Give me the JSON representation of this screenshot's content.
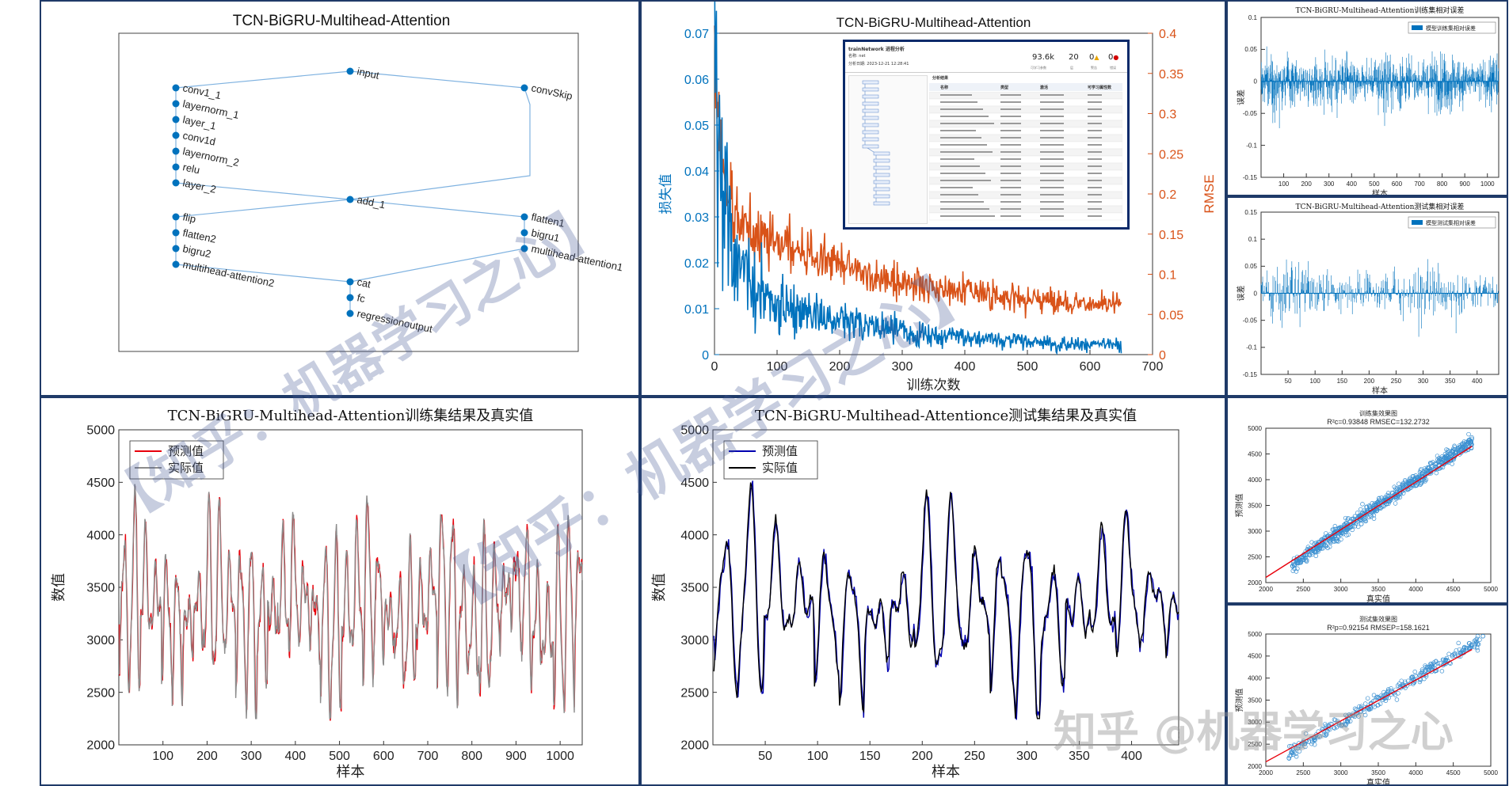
{
  "watermarks": [
    "【知乎：机器学习之心】",
    "【知乎：机器学习之心】",
    "知乎 @机器学习之心"
  ],
  "colors": {
    "panel_border": "#1f3a68",
    "blue": "#0072bd",
    "orange": "#d95319",
    "red": "#e8000b",
    "gray": "#8c8c8c",
    "navy": "#0000b0",
    "black": "#000000"
  },
  "network": {
    "title": "TCN-BiGRU-Multihead-Attention",
    "nodes": [
      "input",
      "conv1_1",
      "layernorm_1",
      "layer_1",
      "conv1d",
      "layernorm_2",
      "relu",
      "layer_2",
      "convSkip",
      "add_1",
      "flip",
      "flatten2",
      "bigru2",
      "multihead-attention2",
      "flatten1",
      "bigru1",
      "multihead-attention1",
      "cat",
      "fc",
      "regressionoutput"
    ]
  },
  "inset": {
    "title": "trainNetwork 进程分析",
    "name_label": "名称: net",
    "time_label": "分析日期: 2023-12-21 12:28:41",
    "stats": [
      "93.6k",
      "20",
      "0",
      "0"
    ],
    "stats_labels": [
      "可学习参数",
      "层",
      "警告",
      "错误"
    ],
    "table_title": "分析结果",
    "cols": [
      "名称",
      "类型",
      "激活",
      "可学习属性数"
    ]
  },
  "chart_data": [
    {
      "type": "line",
      "title": "TCN-BiGRU-Multihead-Attention",
      "xlabel": "训练次数",
      "ylabel": "损失值",
      "y2label": "RMSE",
      "xlim": [
        0,
        700
      ],
      "ylim": [
        0,
        0.07
      ],
      "y2lim": [
        0,
        0.4
      ],
      "xticks": [
        0,
        100,
        200,
        300,
        400,
        500,
        600,
        700
      ],
      "yticks": [
        0,
        0.01,
        0.02,
        0.03,
        0.04,
        0.05,
        0.06,
        0.07
      ],
      "y2ticks": [
        0,
        0.05,
        0.1,
        0.15,
        0.2,
        0.25,
        0.3,
        0.35,
        0.4
      ],
      "series": [
        {
          "name": "损失值",
          "x": [
            0,
            5,
            10,
            20,
            30,
            50,
            75,
            100,
            150,
            200,
            250,
            300,
            350,
            400,
            450,
            500,
            550,
            600,
            650
          ],
          "y": [
            0.066,
            0.05,
            0.042,
            0.03,
            0.022,
            0.016,
            0.013,
            0.011,
            0.009,
            0.007,
            0.006,
            0.005,
            0.004,
            0.0038,
            0.0033,
            0.0028,
            0.0025,
            0.0023,
            0.0022
          ]
        },
        {
          "name": "RMSE",
          "x": [
            0,
            5,
            10,
            20,
            30,
            50,
            75,
            100,
            150,
            200,
            250,
            300,
            350,
            400,
            450,
            500,
            550,
            600,
            650
          ],
          "y": [
            0.37,
            0.3,
            0.25,
            0.2,
            0.18,
            0.16,
            0.15,
            0.14,
            0.125,
            0.11,
            0.1,
            0.09,
            0.085,
            0.08,
            0.074,
            0.07,
            0.066,
            0.062,
            0.06
          ]
        }
      ]
    },
    {
      "type": "bar",
      "title": "TCN-BiGRU-Multihead-Attention训练集相对误差",
      "xlabel": "样本",
      "ylabel": "误差",
      "legend": "模型训练集相对误差",
      "xlim": [
        0,
        1050
      ],
      "ylim": [
        -0.15,
        0.1
      ],
      "xticks": [
        100,
        200,
        300,
        400,
        500,
        600,
        700,
        800,
        900,
        1000
      ],
      "yticks": [
        -0.15,
        -0.1,
        -0.05,
        0,
        0.05,
        0.1
      ],
      "n": 1050,
      "amplitude": 0.05
    },
    {
      "type": "bar",
      "title": "TCN-BiGRU-Multihead-Attention测试集相对误差",
      "xlabel": "样本",
      "ylabel": "误差",
      "legend": "模型测试集相对误差",
      "xlim": [
        0,
        440
      ],
      "ylim": [
        -0.15,
        0.15
      ],
      "xticks": [
        50,
        100,
        150,
        200,
        250,
        300,
        350,
        400
      ],
      "yticks": [
        -0.15,
        -0.1,
        -0.05,
        0,
        0.05,
        0.1,
        0.15
      ],
      "n": 440,
      "amplitude": 0.06
    },
    {
      "type": "line",
      "title": "TCN-BiGRU-Multihead-Attention训练集结果及真实值",
      "xlabel": "样本",
      "ylabel": "数值",
      "xlim": [
        0,
        1050
      ],
      "ylim": [
        2000,
        5000
      ],
      "xticks": [
        100,
        200,
        300,
        400,
        500,
        600,
        700,
        800,
        900,
        1000
      ],
      "yticks": [
        2000,
        2500,
        3000,
        3500,
        4000,
        4500,
        5000
      ],
      "series": [
        {
          "name": "预测值"
        },
        {
          "name": "实际值"
        }
      ],
      "n": 1050,
      "period": 24
    },
    {
      "type": "line",
      "title": "TCN-BiGRU-Multihead-Attentionce测试集结果及真实值",
      "xlabel": "样本",
      "ylabel": "数值",
      "xlim": [
        0,
        445
      ],
      "ylim": [
        2000,
        5000
      ],
      "xticks": [
        50,
        100,
        150,
        200,
        250,
        300,
        350,
        400
      ],
      "yticks": [
        2000,
        2500,
        3000,
        3500,
        4000,
        4500,
        5000
      ],
      "series": [
        {
          "name": "预测值"
        },
        {
          "name": "实际值"
        }
      ],
      "n": 445,
      "period": 24
    },
    {
      "type": "scatter",
      "title": "训练集效果图",
      "subtitle": "R²c=0.93848   RMSEC=132.2732",
      "xlabel": "真实值",
      "ylabel": "预测值",
      "xlim": [
        2000,
        5000
      ],
      "ylim": [
        2000,
        5000
      ],
      "ticks": [
        2000,
        2500,
        3000,
        3500,
        4000,
        4500,
        5000
      ],
      "xrange": [
        2350,
        4750
      ],
      "n": 700,
      "spread": 180
    },
    {
      "type": "scatter",
      "title": "测试集效果图",
      "subtitle": "R²p=0.92154   RMSEP=158.1621",
      "xlabel": "真实值",
      "ylabel": "预测值",
      "xlim": [
        2000,
        5000
      ],
      "ylim": [
        2000,
        5000
      ],
      "ticks": [
        2000,
        2500,
        3000,
        3500,
        4000,
        4500,
        5000
      ],
      "xrange": [
        2300,
        4900
      ],
      "n": 320,
      "spread": 200
    }
  ]
}
